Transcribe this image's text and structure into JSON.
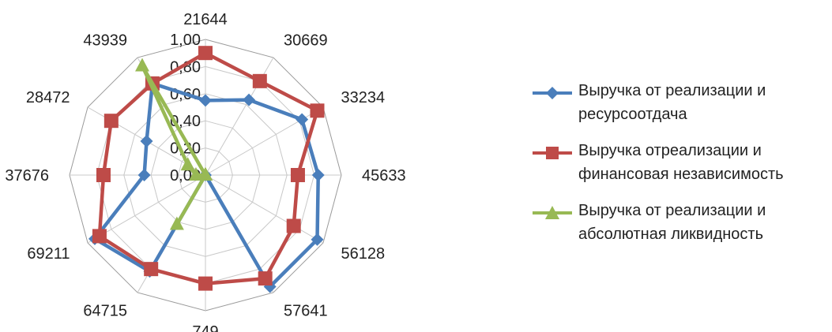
{
  "chart_data": {
    "type": "radar",
    "categories": [
      "21644",
      "30669",
      "33234",
      "45633",
      "56128",
      "57641",
      "749",
      "64715",
      "69211",
      "37676",
      "28472",
      "43939"
    ],
    "rlim": [
      0,
      1
    ],
    "ticks": [
      "0,00",
      "0,20",
      "0,40",
      "0,60",
      "0,80",
      "1,00"
    ],
    "tick_values": [
      0,
      0.2,
      0.4,
      0.6,
      0.8,
      1.0
    ],
    "grid": true,
    "legend_position": "right",
    "series": [
      {
        "name": "Выручка от реализации и ресурсоотдача",
        "color": "#4a7ebb",
        "marker": "diamond",
        "values": [
          0.55,
          0.64,
          0.82,
          0.83,
          0.95,
          0.95,
          0.0,
          0.82,
          0.94,
          0.45,
          0.5,
          0.78
        ]
      },
      {
        "name": "Выручка отреализации и финансовая независимость",
        "color": "#be4b48",
        "marker": "square",
        "values": [
          0.9,
          0.8,
          0.95,
          0.68,
          0.75,
          0.88,
          0.8,
          0.8,
          0.9,
          0.75,
          0.8,
          0.78
        ]
      },
      {
        "name": "Выручка от реализации и абсолютная ликвидность",
        "color": "#98b954",
        "marker": "triangle",
        "values": [
          0.0,
          0.0,
          0.0,
          0.0,
          0.0,
          0.0,
          0.0,
          0.42,
          0.0,
          0.07,
          0.15,
          0.93
        ]
      }
    ]
  },
  "legend": {
    "items": [
      {
        "line1": "Выручка от реализации и",
        "line2": "ресурсоотдача"
      },
      {
        "line1": "Выручка отреализации и",
        "line2": "финансовая независимость"
      },
      {
        "line1": "Выручка от реализации и",
        "line2": "абсолютная ликвидность"
      }
    ]
  }
}
